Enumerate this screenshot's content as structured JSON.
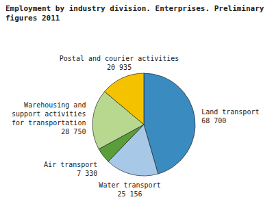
{
  "chart_data": {
    "type": "pie",
    "title": "Employment by industry division. Enterprises. Preliminary figures 2011",
    "categories": [
      "Land transport",
      "Water transport",
      "Air transport",
      "Warehousing and\nsupport activities\nfor transportation",
      "Postal and courier activities"
    ],
    "values": [
      68700,
      25156,
      7330,
      28750,
      20935
    ],
    "value_labels": [
      "68 700",
      "25 156",
      "7 330",
      "28 750",
      "20 935"
    ],
    "colors": [
      "#3a8bbf",
      "#a8c8e8",
      "#5a9e3a",
      "#b8d890",
      "#f5c200"
    ],
    "data_labels": true
  }
}
